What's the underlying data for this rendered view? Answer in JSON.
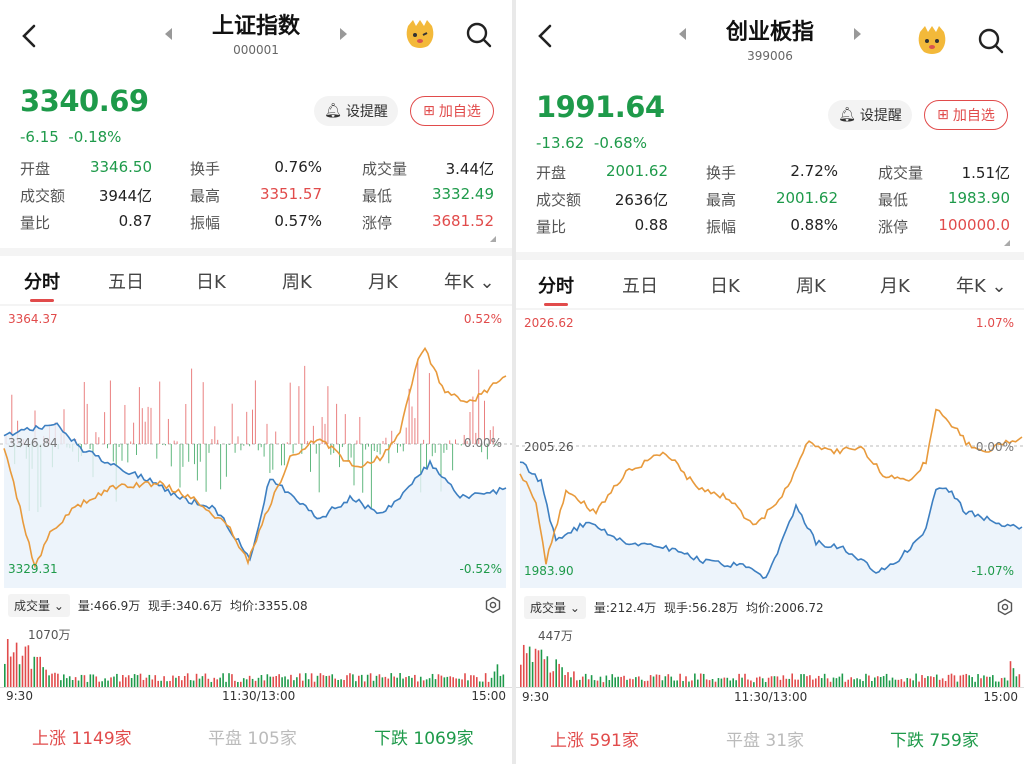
{
  "left": {
    "title": "上证指数",
    "code": "000001",
    "price": "3340.69",
    "change": "-6.15",
    "pct": "-0.18%",
    "remind_label": "设提醒",
    "fav_label": "加自选",
    "stats": [
      {
        "k": "开盘",
        "v": "3346.50",
        "c": "g"
      },
      {
        "k": "换手",
        "v": "0.76%",
        "c": "n"
      },
      {
        "k": "成交量",
        "v": "3.44亿",
        "c": "n"
      },
      {
        "k": "成交额",
        "v": "3944亿",
        "c": "n"
      },
      {
        "k": "最高",
        "v": "3351.57",
        "c": "r"
      },
      {
        "k": "最低",
        "v": "3332.49",
        "c": "g"
      },
      {
        "k": "量比",
        "v": "0.87",
        "c": "n"
      },
      {
        "k": "振幅",
        "v": "0.57%",
        "c": "n"
      },
      {
        "k": "涨停",
        "v": "3681.52",
        "c": "r"
      }
    ],
    "tabs": [
      "分时",
      "五日",
      "日K",
      "周K",
      "月K",
      "年K"
    ],
    "axis": {
      "top_price": "3364.37",
      "top_pct": "0.52%",
      "mid_price": "3346.84",
      "mid_pct": "0.00%",
      "bot_price": "3329.31",
      "bot_pct": "-0.52%"
    },
    "vol": {
      "label": "成交量",
      "qty": "量:466.9万",
      "now": "现手:340.6万",
      "avg": "均价:3355.08",
      "max": "1070万"
    },
    "time": {
      "start": "9:30",
      "mid": "11:30/13:00",
      "end": "15:00"
    },
    "foot": {
      "up_k": "上涨",
      "up_v": "1149家",
      "flat_k": "平盘",
      "flat_v": "105家",
      "down_k": "下跌",
      "down_v": "1069家"
    }
  },
  "right": {
    "title": "创业板指",
    "code": "399006",
    "price": "1991.64",
    "change": "-13.62",
    "pct": "-0.68%",
    "remind_label": "设提醒",
    "fav_label": "加自选",
    "stats": [
      {
        "k": "开盘",
        "v": "2001.62",
        "c": "g"
      },
      {
        "k": "换手",
        "v": "2.72%",
        "c": "n"
      },
      {
        "k": "成交量",
        "v": "1.51亿",
        "c": "n"
      },
      {
        "k": "成交额",
        "v": "2636亿",
        "c": "n"
      },
      {
        "k": "最高",
        "v": "2001.62",
        "c": "g"
      },
      {
        "k": "最低",
        "v": "1983.90",
        "c": "g"
      },
      {
        "k": "量比",
        "v": "0.88",
        "c": "n"
      },
      {
        "k": "振幅",
        "v": "0.88%",
        "c": "n"
      },
      {
        "k": "涨停",
        "v": "100000.0",
        "c": "r"
      }
    ],
    "tabs": [
      "分时",
      "五日",
      "日K",
      "周K",
      "月K",
      "年K"
    ],
    "axis": {
      "top_price": "2026.62",
      "top_pct": "1.07%",
      "mid_price": "2005.26",
      "mid_pct": "0.00%",
      "bot_price": "1983.90",
      "bot_pct": "-1.07%"
    },
    "vol": {
      "label": "成交量",
      "qty": "量:212.4万",
      "now": "现手:56.28万",
      "avg": "均价:2006.72",
      "max": "447万"
    },
    "time": {
      "start": "9:30",
      "mid": "11:30/13:00",
      "end": "15:00"
    },
    "foot": {
      "up_k": "上涨",
      "up_v": "591家",
      "flat_k": "平盘",
      "flat_v": "31家",
      "down_k": "下跌",
      "down_v": "759家"
    }
  },
  "colors": {
    "up": "#e14b4b",
    "down": "#1e9a4a",
    "price_line": "#3d7fc1",
    "avg_line": "#e89a3c"
  }
}
